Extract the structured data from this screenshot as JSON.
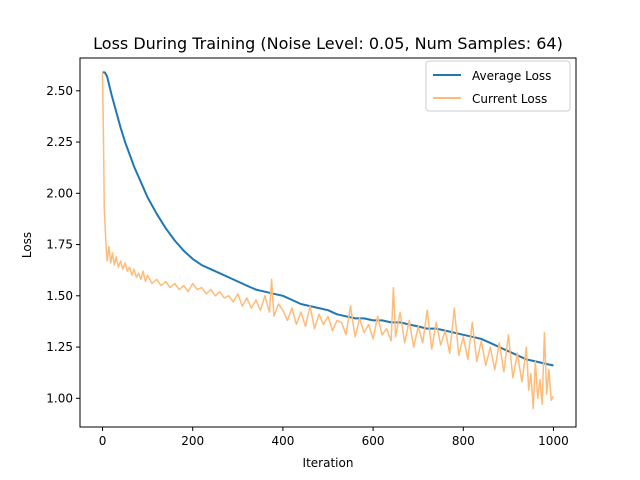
{
  "chart_data": {
    "type": "line",
    "title": "Loss During Training (Noise Level: 0.05, Num Samples: 64)",
    "xlabel": "Iteration",
    "ylabel": "Loss",
    "xlim": [
      -50,
      1050
    ],
    "ylim": [
      0.86,
      2.66
    ],
    "xticks": [
      0,
      200,
      400,
      600,
      800,
      1000
    ],
    "yticks": [
      1.0,
      1.25,
      1.5,
      1.75,
      2.0,
      2.25,
      2.5
    ],
    "xtick_labels": [
      "0",
      "200",
      "400",
      "600",
      "800",
      "1000"
    ],
    "ytick_labels": [
      "1.00",
      "1.25",
      "1.50",
      "1.75",
      "2.00",
      "2.25",
      "2.50"
    ],
    "grid": false,
    "legend_position": "top-right",
    "series": [
      {
        "name": "Average Loss",
        "color": "#1f77b4",
        "x": [
          0,
          5,
          10,
          20,
          30,
          40,
          50,
          60,
          70,
          80,
          90,
          100,
          120,
          140,
          160,
          180,
          200,
          220,
          240,
          260,
          280,
          300,
          320,
          340,
          360,
          380,
          400,
          420,
          440,
          460,
          480,
          500,
          520,
          540,
          560,
          580,
          600,
          620,
          640,
          660,
          680,
          700,
          720,
          740,
          760,
          780,
          800,
          820,
          840,
          860,
          880,
          900,
          920,
          940,
          960,
          980,
          1000
        ],
        "y": [
          2.59,
          2.59,
          2.57,
          2.48,
          2.4,
          2.32,
          2.25,
          2.19,
          2.13,
          2.08,
          2.03,
          1.98,
          1.9,
          1.83,
          1.77,
          1.72,
          1.68,
          1.65,
          1.63,
          1.61,
          1.59,
          1.57,
          1.55,
          1.53,
          1.52,
          1.51,
          1.5,
          1.48,
          1.46,
          1.45,
          1.44,
          1.43,
          1.41,
          1.4,
          1.39,
          1.39,
          1.38,
          1.38,
          1.37,
          1.37,
          1.36,
          1.35,
          1.34,
          1.34,
          1.33,
          1.32,
          1.31,
          1.3,
          1.29,
          1.27,
          1.25,
          1.23,
          1.21,
          1.19,
          1.18,
          1.17,
          1.16
        ]
      },
      {
        "name": "Current Loss",
        "color": "#ffbb78",
        "x": [
          0,
          2,
          4,
          6,
          8,
          10,
          14,
          18,
          22,
          26,
          30,
          35,
          40,
          45,
          50,
          55,
          60,
          65,
          70,
          75,
          80,
          85,
          90,
          95,
          100,
          110,
          120,
          130,
          140,
          150,
          160,
          170,
          180,
          190,
          200,
          210,
          220,
          230,
          240,
          250,
          260,
          270,
          280,
          290,
          300,
          310,
          320,
          330,
          340,
          350,
          360,
          370,
          375,
          380,
          390,
          400,
          410,
          420,
          430,
          440,
          450,
          460,
          470,
          480,
          490,
          500,
          510,
          520,
          530,
          540,
          550,
          560,
          570,
          580,
          590,
          600,
          610,
          620,
          630,
          640,
          645,
          650,
          660,
          670,
          680,
          690,
          700,
          710,
          720,
          730,
          740,
          750,
          760,
          770,
          780,
          790,
          800,
          810,
          820,
          830,
          840,
          850,
          860,
          870,
          880,
          890,
          900,
          910,
          920,
          930,
          940,
          945,
          950,
          955,
          960,
          965,
          970,
          975,
          980,
          985,
          990,
          995,
          1000
        ],
        "y": [
          2.59,
          2.3,
          1.92,
          1.82,
          1.73,
          1.67,
          1.74,
          1.66,
          1.71,
          1.65,
          1.69,
          1.64,
          1.67,
          1.63,
          1.66,
          1.62,
          1.64,
          1.6,
          1.63,
          1.59,
          1.61,
          1.58,
          1.62,
          1.57,
          1.6,
          1.56,
          1.58,
          1.55,
          1.57,
          1.54,
          1.56,
          1.53,
          1.55,
          1.52,
          1.56,
          1.53,
          1.54,
          1.51,
          1.53,
          1.5,
          1.52,
          1.49,
          1.5,
          1.47,
          1.51,
          1.45,
          1.49,
          1.44,
          1.48,
          1.43,
          1.5,
          1.42,
          1.58,
          1.4,
          1.46,
          1.43,
          1.38,
          1.44,
          1.36,
          1.42,
          1.35,
          1.45,
          1.34,
          1.41,
          1.36,
          1.4,
          1.33,
          1.38,
          1.37,
          1.31,
          1.45,
          1.3,
          1.39,
          1.32,
          1.36,
          1.29,
          1.4,
          1.31,
          1.34,
          1.28,
          1.54,
          1.3,
          1.42,
          1.27,
          1.38,
          1.25,
          1.35,
          1.27,
          1.43,
          1.24,
          1.37,
          1.26,
          1.33,
          1.22,
          1.44,
          1.21,
          1.3,
          1.19,
          1.37,
          1.18,
          1.28,
          1.16,
          1.25,
          1.14,
          1.27,
          1.13,
          1.31,
          1.1,
          1.22,
          1.08,
          1.25,
          1.04,
          1.12,
          0.95,
          1.18,
          1.0,
          1.09,
          0.97,
          1.32,
          1.02,
          1.14,
          0.99,
          1.01
        ]
      }
    ]
  }
}
